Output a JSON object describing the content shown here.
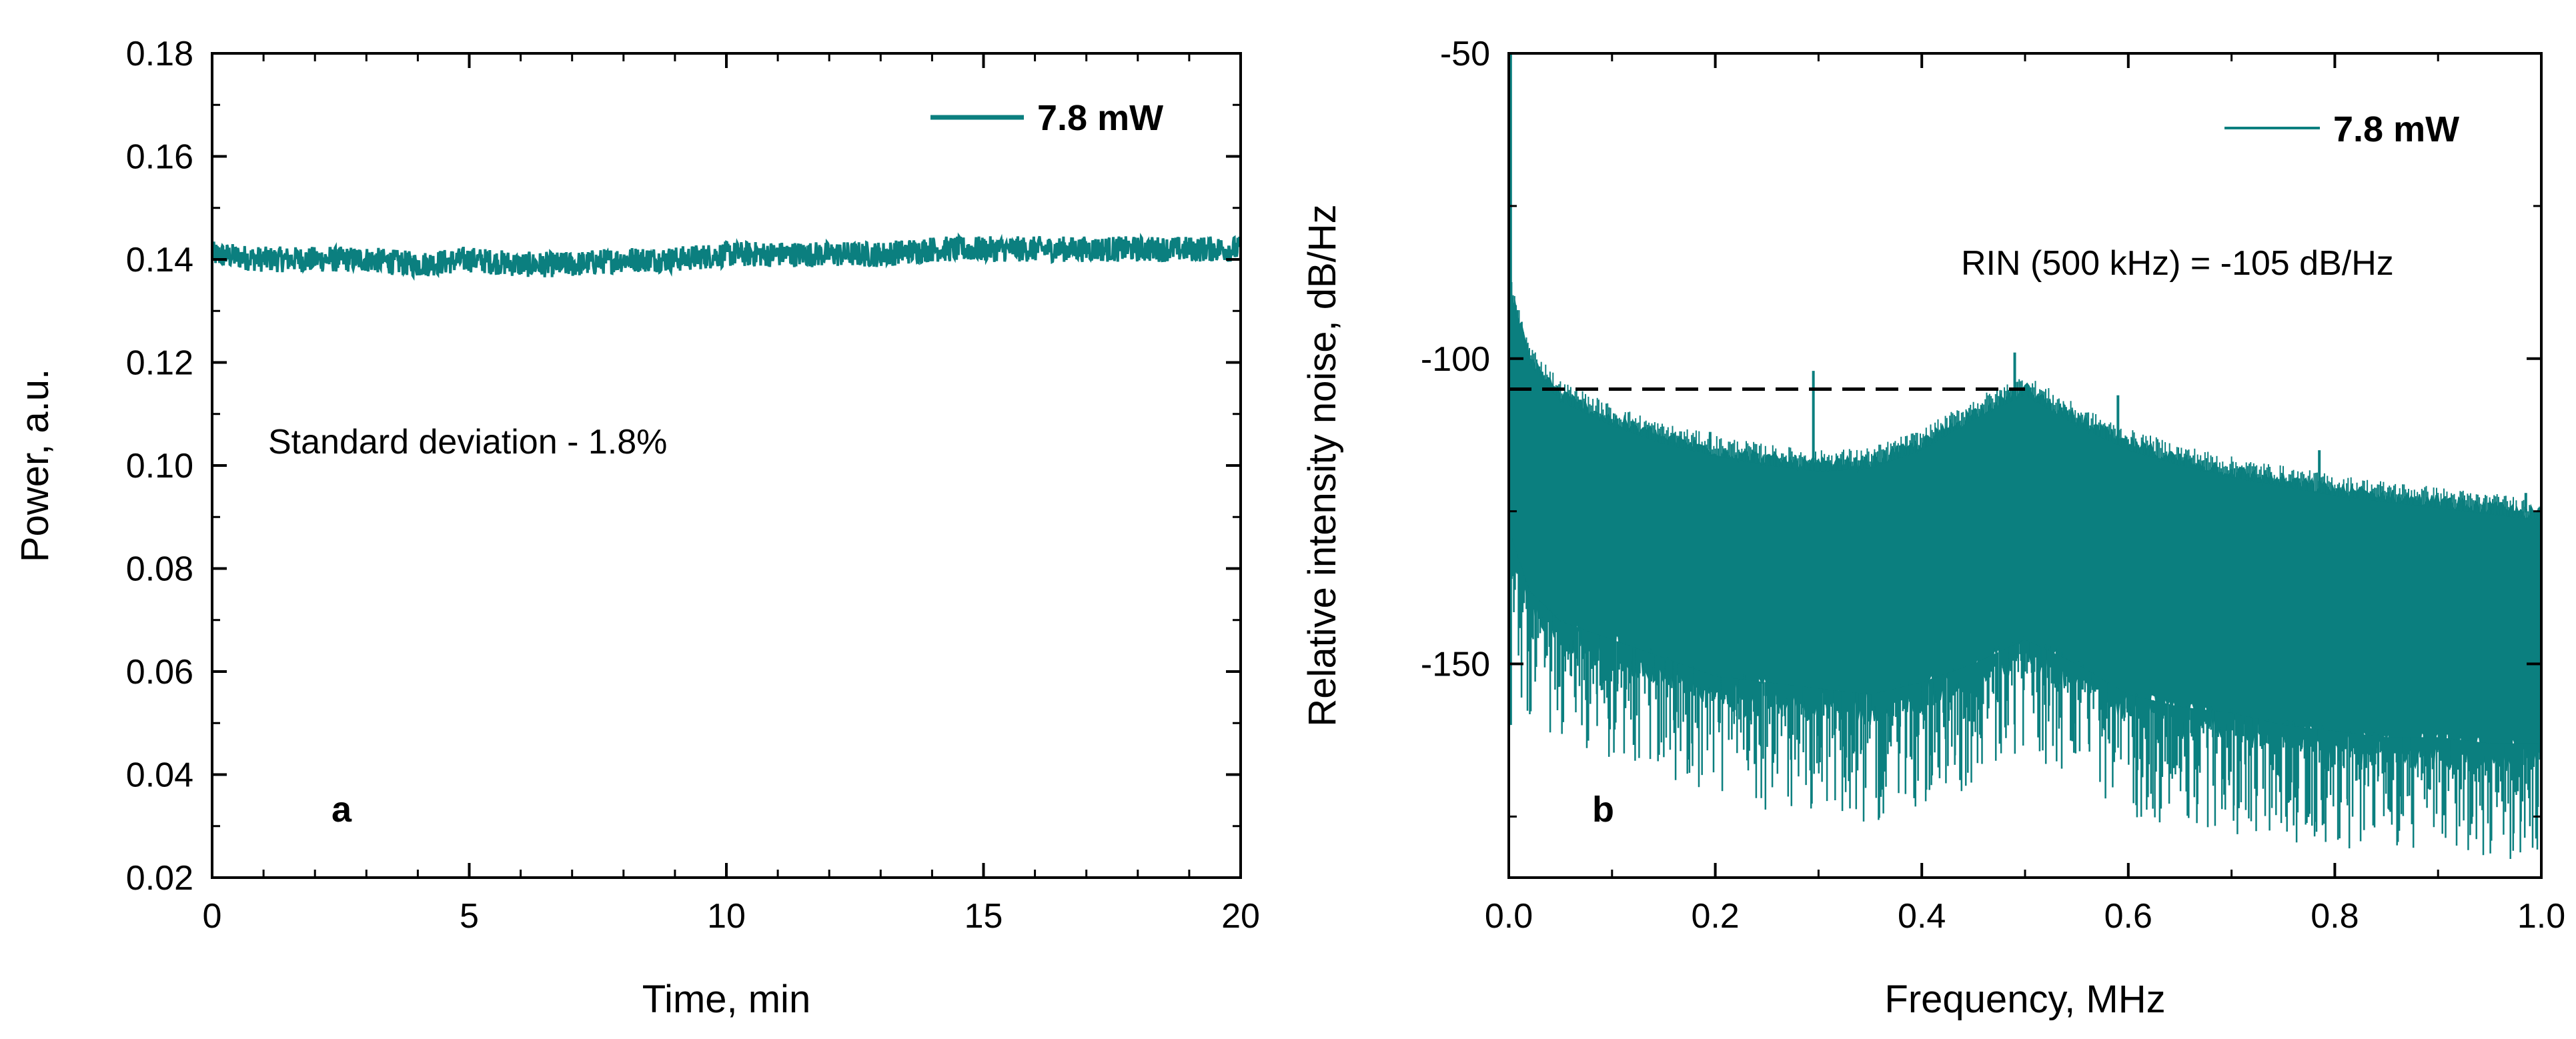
{
  "chart_data": [
    {
      "panel": "a",
      "type": "line",
      "title": "",
      "xlabel": "Time, min",
      "ylabel": "Power, a.u.",
      "xlim": [
        0,
        20
      ],
      "ylim": [
        0.02,
        0.18
      ],
      "xticks": [
        0,
        5,
        10,
        15,
        20
      ],
      "yticks": [
        0.02,
        0.04,
        0.06,
        0.08,
        0.1,
        0.12,
        0.14,
        0.16,
        0.18
      ],
      "xtick_labels": [
        "0",
        "5",
        "10",
        "15",
        "20"
      ],
      "ytick_labels": [
        "0.02",
        "0.04",
        "0.06",
        "0.08",
        "0.10",
        "0.12",
        "0.14",
        "0.16",
        "0.18"
      ],
      "series": [
        {
          "name": "7.8 mW",
          "color": "#0b7f7f",
          "x": [
            0,
            1,
            2,
            3,
            4,
            5,
            6,
            7,
            8,
            9,
            10,
            11,
            12,
            13,
            14,
            15,
            16,
            17,
            18,
            19,
            20
          ],
          "y": [
            0.141,
            0.14,
            0.14,
            0.14,
            0.139,
            0.14,
            0.139,
            0.139,
            0.14,
            0.14,
            0.141,
            0.141,
            0.141,
            0.141,
            0.142,
            0.142,
            0.142,
            0.142,
            0.142,
            0.142,
            0.142
          ],
          "noise_amplitude": 0.0025
        }
      ],
      "annotations": [
        "Standard deviation - 1.8%"
      ],
      "legend": {
        "label": "7.8 mW",
        "position": "top-right"
      },
      "panel_label": "a"
    },
    {
      "panel": "b",
      "type": "line",
      "title": "",
      "xlabel": "Frequency, MHz",
      "ylabel": "Relative intensity noise, dB/Hz",
      "xlim": [
        0.0,
        1.0
      ],
      "ylim": [
        -185,
        -50
      ],
      "xticks": [
        0.0,
        0.2,
        0.4,
        0.6,
        0.8,
        1.0
      ],
      "yticks": [
        -150,
        -100,
        -50
      ],
      "xtick_labels": [
        "0.0",
        "0.2",
        "0.4",
        "0.6",
        "0.8",
        "1.0"
      ],
      "ytick_labels": [
        "-150",
        "-100",
        "-50"
      ],
      "series": [
        {
          "name": "7.8 mW",
          "color": "#0b7f7f",
          "x": [
            0.0,
            0.02,
            0.05,
            0.1,
            0.15,
            0.2,
            0.25,
            0.3,
            0.35,
            0.4,
            0.45,
            0.5,
            0.55,
            0.6,
            0.65,
            0.7,
            0.75,
            0.8,
            0.85,
            0.9,
            0.95,
            1.0
          ],
          "y_upper": [
            -88,
            -100,
            -106,
            -110,
            -113,
            -115,
            -116.5,
            -117.5,
            -117,
            -114,
            -109,
            -105,
            -110,
            -114,
            -116.5,
            -118.5,
            -120,
            -121.5,
            -122.5,
            -123.5,
            -124.5,
            -125.5
          ],
          "y_lower": [
            -130,
            -140,
            -145,
            -148,
            -151,
            -154,
            -155,
            -156,
            -157,
            -155,
            -152,
            -148,
            -152,
            -157,
            -159,
            -160,
            -162,
            -163,
            -164,
            -164,
            -165,
            -165
          ],
          "y_min": [
            -150,
            -160,
            -163,
            -166,
            -169,
            -172,
            -174,
            -175,
            -176,
            -174,
            -170,
            -165,
            -170,
            -175,
            -177,
            -178,
            -179,
            -180,
            -181,
            -181,
            -182,
            -182
          ],
          "start_peak": -50,
          "spikes": [
            {
              "x": 0.195,
              "y": -112
            },
            {
              "x": 0.295,
              "y": -102
            },
            {
              "x": 0.49,
              "y": -99
            },
            {
              "x": 0.59,
              "y": -106
            },
            {
              "x": 0.785,
              "y": -115
            },
            {
              "x": 0.985,
              "y": -122
            }
          ]
        }
      ],
      "reference_line": {
        "y": -105,
        "x_range": [
          0.0,
          0.5
        ],
        "style": "dashed"
      },
      "annotations": [
        "RIN (500 kHz) = -105 dB/Hz"
      ],
      "legend": {
        "label": "7.8 mW",
        "position": "top-right"
      },
      "panel_label": "b"
    }
  ]
}
